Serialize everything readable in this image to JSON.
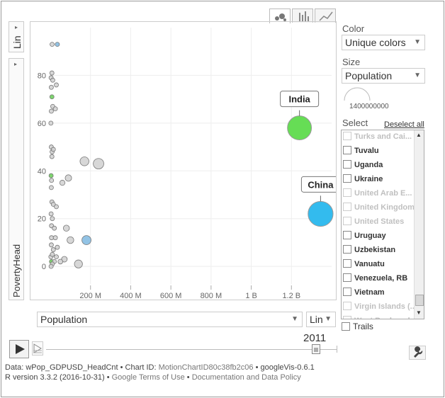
{
  "y_scale": {
    "label": "Lin",
    "icon": "triangle-down"
  },
  "y_axis_label": "PovertyHead",
  "x_scale": {
    "label": "Lin",
    "icon": "triangle-down"
  },
  "x_variable": {
    "label": "Population",
    "icon": "triangle-down"
  },
  "chart_tabs": [
    "bubble-chart-icon",
    "bar-chart-icon",
    "line-chart-icon"
  ],
  "color_panel": {
    "label": "Color",
    "value": "Unique colors"
  },
  "size_panel": {
    "label": "Size",
    "value": "Population",
    "legend_value": "1400000000"
  },
  "select_panel": {
    "label": "Select",
    "deselect_all": "Deselect all",
    "items": [
      {
        "label": "Turks and Cai...",
        "dim": true
      },
      {
        "label": "Tuvalu",
        "dim": false
      },
      {
        "label": "Uganda",
        "dim": false
      },
      {
        "label": "Ukraine",
        "dim": false
      },
      {
        "label": "United Arab E...",
        "dim": true
      },
      {
        "label": "United Kingdom",
        "dim": true
      },
      {
        "label": "United States",
        "dim": true
      },
      {
        "label": "Uruguay",
        "dim": false
      },
      {
        "label": "Uzbekistan",
        "dim": false
      },
      {
        "label": "Vanuatu",
        "dim": false
      },
      {
        "label": "Venezuela, RB",
        "dim": false
      },
      {
        "label": "Vietnam",
        "dim": false
      },
      {
        "label": "Virgin Islands (...",
        "dim": true
      },
      {
        "label": "West Bank and...",
        "dim": true
      }
    ]
  },
  "trails_label": "Trails",
  "play": {
    "year": "2011"
  },
  "footer": {
    "line1_prefix": "Data: wPop_GDPUSD_HeadCnt • Chart ID: ",
    "line1_chartid": "MotionChartID80c38fb2c06",
    "line1_suffix": " • googleVis-0.6.1",
    "line2_prefix": "R version 3.3.2 (2016-10-31) • ",
    "line2_terms": "Google Terms of Use",
    "line2_sep": " • ",
    "line2_docs": "Documentation and Data Policy"
  },
  "chart_data": {
    "type": "scatter",
    "title": "",
    "xlabel": "Population",
    "ylabel": "PovertyHead",
    "xlim": [
      0,
      1400000000
    ],
    "ylim": [
      -5,
      100
    ],
    "x_ticks": [
      {
        "value": 200000000,
        "label": "200 M"
      },
      {
        "value": 400000000,
        "label": "400 M"
      },
      {
        "value": 600000000,
        "label": "600 M"
      },
      {
        "value": 800000000,
        "label": "800 M"
      },
      {
        "value": 1000000000,
        "label": "1 B"
      },
      {
        "value": 1200000000,
        "label": "1.2 B"
      }
    ],
    "y_ticks": [
      0,
      20,
      40,
      60,
      80
    ],
    "grid": true,
    "highlighted": [
      {
        "name": "India",
        "x": 1240000000,
        "y": 58,
        "color": "#66dd55"
      },
      {
        "name": "China",
        "x": 1345000000,
        "y": 22,
        "color": "#33bbee"
      }
    ],
    "points": [
      {
        "x": 9000000,
        "y": 93
      },
      {
        "x": 35000000,
        "y": 93,
        "color": "#7fb8e0"
      },
      {
        "x": 8000000,
        "y": 81
      },
      {
        "x": 4000000,
        "y": 79
      },
      {
        "x": 12000000,
        "y": 78
      },
      {
        "x": 5000000,
        "y": 75
      },
      {
        "x": 30000000,
        "y": 76
      },
      {
        "x": 8000000,
        "y": 71,
        "color": "#66cc55"
      },
      {
        "x": 12000000,
        "y": 67
      },
      {
        "x": 5000000,
        "y": 65
      },
      {
        "x": 25000000,
        "y": 66
      },
      {
        "x": 3000000,
        "y": 60
      },
      {
        "x": 5000000,
        "y": 50
      },
      {
        "x": 9000000,
        "y": 48
      },
      {
        "x": 15000000,
        "y": 49
      },
      {
        "x": 8000000,
        "y": 46
      },
      {
        "x": 170000000,
        "y": 44
      },
      {
        "x": 240000000,
        "y": 43
      },
      {
        "x": 4000000,
        "y": 38,
        "color": "#66cc55"
      },
      {
        "x": 6000000,
        "y": 36
      },
      {
        "x": 90000000,
        "y": 37
      },
      {
        "x": 60000000,
        "y": 35
      },
      {
        "x": 5000000,
        "y": 33
      },
      {
        "x": 8000000,
        "y": 27
      },
      {
        "x": 15000000,
        "y": 26
      },
      {
        "x": 30000000,
        "y": 25
      },
      {
        "x": 4000000,
        "y": 22
      },
      {
        "x": 10000000,
        "y": 20
      },
      {
        "x": 6000000,
        "y": 17
      },
      {
        "x": 20000000,
        "y": 16
      },
      {
        "x": 80000000,
        "y": 16
      },
      {
        "x": 6000000,
        "y": 12
      },
      {
        "x": 25000000,
        "y": 12
      },
      {
        "x": 100000000,
        "y": 11
      },
      {
        "x": 180000000,
        "y": 11,
        "color": "#7fb8e0"
      },
      {
        "x": 5000000,
        "y": 9
      },
      {
        "x": 15000000,
        "y": 7
      },
      {
        "x": 35000000,
        "y": 8
      },
      {
        "x": 3000000,
        "y": 4
      },
      {
        "x": 10000000,
        "y": 5
      },
      {
        "x": 30000000,
        "y": 4
      },
      {
        "x": 70000000,
        "y": 3
      },
      {
        "x": 6000000,
        "y": 2,
        "color": "#66cc55"
      },
      {
        "x": 20000000,
        "y": 2
      },
      {
        "x": 50000000,
        "y": 2
      },
      {
        "x": 10000000,
        "y": 1
      },
      {
        "x": 140000000,
        "y": 1
      },
      {
        "x": 4000000,
        "y": 0
      }
    ]
  }
}
